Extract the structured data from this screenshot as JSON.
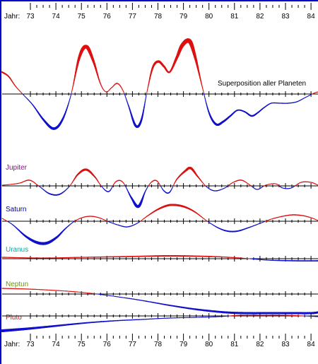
{
  "year_prefix": "Jahr:",
  "years": [
    "73",
    "74",
    "75",
    "76",
    "77",
    "78",
    "79",
    "80",
    "81",
    "82",
    "83",
    "84"
  ],
  "superposition_label": "Superposition aller Planeten",
  "colors": {
    "frame": "#0000cc",
    "positive": "#dd1111",
    "negative": "#1111cc"
  },
  "planets": [
    {
      "name": "Jupiter",
      "color": "#990099"
    },
    {
      "name": "Saturn",
      "color": "#000099"
    },
    {
      "name": "Uranus",
      "color": "#00aaaa"
    },
    {
      "name": "Neptun",
      "color": "#669900"
    },
    {
      "name": "Pluto",
      "color": "#dd1111"
    }
  ]
}
